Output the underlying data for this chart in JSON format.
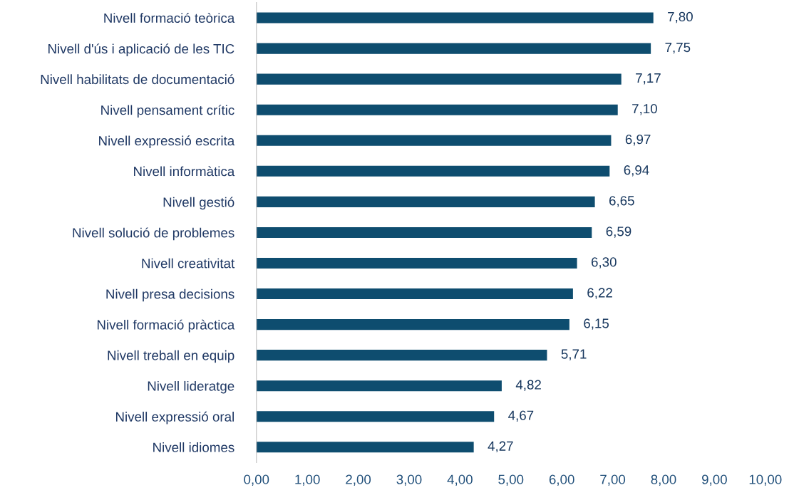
{
  "chart_data": {
    "type": "bar",
    "orientation": "horizontal",
    "categories": [
      "Nivell formació teòrica",
      "Nivell d'ús i aplicació de les TIC",
      "Nivell habilitats de documentació",
      "Nivell pensament crític",
      "Nivell expressió escrita",
      "Nivell informàtica",
      "Nivell gestió",
      "Nivell solució de problemes",
      "Nivell creativitat",
      "Nivell presa decisions",
      "Nivell formació pràctica",
      "Nivell treball en equip",
      "Nivell lideratge",
      "Nivell expressió oral",
      "Nivell idiomes"
    ],
    "values": [
      7.8,
      7.75,
      7.17,
      7.1,
      6.97,
      6.94,
      6.65,
      6.59,
      6.3,
      6.22,
      6.15,
      5.71,
      4.82,
      4.67,
      4.27
    ],
    "value_labels": [
      "7,80",
      "7,75",
      "7,17",
      "7,10",
      "6,97",
      "6,94",
      "6,65",
      "6,59",
      "6,30",
      "6,22",
      "6,15",
      "5,71",
      "4,82",
      "4,67",
      "4,27"
    ],
    "color": "#0e4d6f",
    "xlim": [
      0,
      10
    ],
    "xticks": [
      {
        "value": 0,
        "label": "0,00"
      },
      {
        "value": 1,
        "label": "1,00"
      },
      {
        "value": 2,
        "label": "2,00"
      },
      {
        "value": 3,
        "label": "3,00"
      },
      {
        "value": 4,
        "label": "4,00"
      },
      {
        "value": 5,
        "label": "5,00"
      },
      {
        "value": 6,
        "label": "6,00"
      },
      {
        "value": 7,
        "label": "7,00"
      },
      {
        "value": 8,
        "label": "8,00"
      },
      {
        "value": 9,
        "label": "9,00"
      },
      {
        "value": 10,
        "label": "10,00"
      }
    ],
    "grid": false,
    "legend": false
  }
}
